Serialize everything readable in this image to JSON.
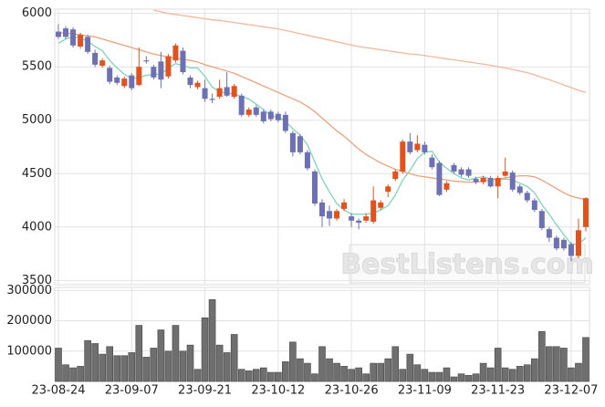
{
  "chart_data": {
    "type": "candlestick",
    "categories": [
      "23-08-24",
      null,
      null,
      null,
      null,
      null,
      null,
      null,
      null,
      null,
      "23-09-07",
      null,
      null,
      null,
      null,
      null,
      null,
      null,
      null,
      null,
      "23-09-21",
      null,
      null,
      null,
      null,
      null,
      null,
      null,
      null,
      null,
      "23-10-12",
      null,
      null,
      null,
      null,
      null,
      null,
      null,
      null,
      null,
      "23-10-26",
      null,
      null,
      null,
      null,
      null,
      null,
      null,
      null,
      null,
      "23-11-09",
      null,
      null,
      null,
      null,
      null,
      null,
      null,
      null,
      null,
      "23-11-23",
      null,
      null,
      null,
      null,
      null,
      null,
      null,
      null,
      null,
      "23-12-07",
      null,
      null
    ],
    "open": [
      5830,
      5860,
      5850,
      5690,
      5780,
      5630,
      5510,
      5490,
      5400,
      5320,
      5420,
      5330,
      5560,
      5500,
      5550,
      5410,
      5560,
      5650,
      5400,
      5310,
      5300,
      5200,
      5220,
      5310,
      5220,
      5230,
      5050,
      5120,
      5080,
      5080,
      5060,
      5050,
      4880,
      4850,
      4700,
      4520,
      4230,
      4150,
      4080,
      4170,
      4100,
      4060,
      4060,
      4050,
      4180,
      4330,
      4450,
      4520,
      4800,
      4720,
      4770,
      4650,
      4600,
      4350,
      4580,
      4540,
      4540,
      4450,
      4420,
      4460,
      4380,
      4480,
      4510,
      4380,
      4320,
      4250,
      4150,
      3980,
      3900,
      3880,
      3840,
      3730,
      4000
    ],
    "high": [
      5900,
      5880,
      5870,
      5820,
      5800,
      5660,
      5580,
      5510,
      5420,
      5410,
      5440,
      5680,
      5600,
      5520,
      5640,
      5620,
      5720,
      5680,
      5420,
      5370,
      5380,
      5250,
      5380,
      5450,
      5340,
      5250,
      5120,
      5140,
      5100,
      5100,
      5080,
      5080,
      4900,
      4870,
      4720,
      4540,
      4260,
      4200,
      4170,
      4260,
      4130,
      4080,
      4130,
      4380,
      4250,
      4400,
      4540,
      4820,
      4880,
      4860,
      4800,
      4680,
      4620,
      4430,
      4600,
      4560,
      4560,
      4470,
      4480,
      4480,
      4480,
      4650,
      4530,
      4400,
      4340,
      4270,
      4170,
      4000,
      3920,
      3900,
      3860,
      4080,
      4280
    ],
    "low": [
      5760,
      5760,
      5680,
      5670,
      5620,
      5500,
      5490,
      5340,
      5330,
      5300,
      5280,
      5320,
      5530,
      5380,
      5300,
      5390,
      5540,
      5430,
      5300,
      5290,
      5170,
      5160,
      5200,
      5220,
      5200,
      5030,
      5030,
      5030,
      4970,
      4990,
      4980,
      4880,
      4660,
      4680,
      4530,
      4200,
      4000,
      4010,
      4060,
      4150,
      4000,
      3980,
      4040,
      4030,
      4160,
      4280,
      4430,
      4500,
      4680,
      4700,
      4680,
      4540,
      4290,
      4330,
      4500,
      4470,
      4460,
      4400,
      4400,
      4370,
      4270,
      4470,
      4330,
      4300,
      4230,
      4140,
      3970,
      3860,
      3780,
      3780,
      3680,
      3710,
      3960
    ],
    "close": [
      5780,
      5780,
      5700,
      5800,
      5640,
      5520,
      5560,
      5360,
      5350,
      5390,
      5300,
      5500,
      5550,
      5400,
      5380,
      5600,
      5700,
      5450,
      5330,
      5350,
      5200,
      5190,
      5300,
      5230,
      5320,
      5050,
      5100,
      5050,
      4990,
      5010,
      5000,
      4900,
      4700,
      4700,
      4550,
      4220,
      4100,
      4080,
      4150,
      4230,
      4060,
      4040,
      4100,
      4250,
      4230,
      4380,
      4520,
      4800,
      4700,
      4780,
      4700,
      4560,
      4300,
      4410,
      4520,
      4490,
      4480,
      4420,
      4460,
      4380,
      4460,
      4520,
      4350,
      4320,
      4250,
      4160,
      3990,
      3900,
      3800,
      3800,
      3730,
      3970,
      4270
    ],
    "up_color": "#e0531f",
    "down_color": "#6e70b4",
    "ylim": [
      3460,
      6040
    ],
    "yticks": [
      3500,
      4000,
      4500,
      5000,
      5500,
      6000
    ],
    "grid": true,
    "lines": [
      {
        "color": "#7fd4bb",
        "values": [
          5720,
          5760,
          5780,
          5770,
          5740,
          5690,
          5650,
          5560,
          5490,
          5430,
          5390,
          5400,
          5420,
          5430,
          5430,
          5490,
          5530,
          5510,
          5490,
          5490,
          5410,
          5310,
          5270,
          5250,
          5250,
          5220,
          5200,
          5150,
          5100,
          5040,
          5030,
          4990,
          4920,
          4860,
          4770,
          4610,
          4450,
          4330,
          4220,
          4160,
          4120,
          4120,
          4120,
          4130,
          4160,
          4200,
          4300,
          4440,
          4530,
          4640,
          4700,
          4710,
          4610,
          4550,
          4500,
          4460,
          4440,
          4460,
          4470,
          4450,
          4440,
          4450,
          4440,
          4410,
          4380,
          4320,
          4210,
          4120,
          4020,
          3930,
          3840,
          3840,
          3900
        ]
      },
      {
        "color": "#eaa27e",
        "values": [
          5820,
          5815,
          5810,
          5800,
          5790,
          5780,
          5760,
          5740,
          5720,
          5700,
          5680,
          5660,
          5640,
          5620,
          5605,
          5590,
          5580,
          5570,
          5560,
          5545,
          5520,
          5500,
          5480,
          5460,
          5440,
          5410,
          5380,
          5350,
          5320,
          5290,
          5260,
          5230,
          5200,
          5170,
          5130,
          5080,
          5020,
          4960,
          4900,
          4850,
          4790,
          4730,
          4680,
          4640,
          4600,
          4570,
          4540,
          4520,
          4500,
          4480,
          4470,
          4460,
          4450,
          4440,
          4430,
          4425,
          4420,
          4420,
          4430,
          4440,
          4450,
          4460,
          4470,
          4480,
          4480,
          4470,
          4440,
          4400,
          4360,
          4320,
          4290,
          4270,
          4260
        ]
      },
      {
        "color": "#f0b89c",
        "values": [
          null,
          null,
          null,
          null,
          null,
          null,
          null,
          null,
          null,
          null,
          null,
          null,
          null,
          6030,
          6015,
          6000,
          5990,
          5980,
          5970,
          5960,
          5950,
          5940,
          5935,
          5925,
          5915,
          5905,
          5895,
          5885,
          5875,
          5865,
          5855,
          5840,
          5825,
          5810,
          5795,
          5780,
          5765,
          5750,
          5735,
          5720,
          5705,
          5690,
          5680,
          5670,
          5660,
          5650,
          5640,
          5630,
          5620,
          5615,
          5605,
          5595,
          5585,
          5575,
          5565,
          5555,
          5545,
          5535,
          5525,
          5515,
          5500,
          5490,
          5475,
          5460,
          5445,
          5425,
          5400,
          5380,
          5355,
          5330,
          5305,
          5280,
          5260
        ]
      }
    ],
    "volume": {
      "type": "bar",
      "color": "#6f6f6f",
      "values": [
        110000,
        55000,
        45000,
        50000,
        135000,
        125000,
        90000,
        115000,
        85000,
        85000,
        95000,
        185000,
        80000,
        110000,
        170000,
        100000,
        185000,
        100000,
        120000,
        40000,
        210000,
        270000,
        120000,
        95000,
        155000,
        40000,
        35000,
        40000,
        45000,
        30000,
        30000,
        65000,
        130000,
        75000,
        60000,
        25000,
        115000,
        75000,
        60000,
        50000,
        40000,
        45000,
        25000,
        60000,
        60000,
        75000,
        115000,
        40000,
        90000,
        55000,
        40000,
        30000,
        30000,
        45000,
        15000,
        25000,
        20000,
        25000,
        60000,
        45000,
        110000,
        45000,
        40000,
        50000,
        55000,
        75000,
        165000,
        115000,
        115000,
        110000,
        45000,
        60000,
        145000
      ],
      "ylim": [
        0,
        310000
      ],
      "yticks": [
        100000,
        200000,
        300000
      ]
    },
    "watermark": "BestListens.com"
  }
}
